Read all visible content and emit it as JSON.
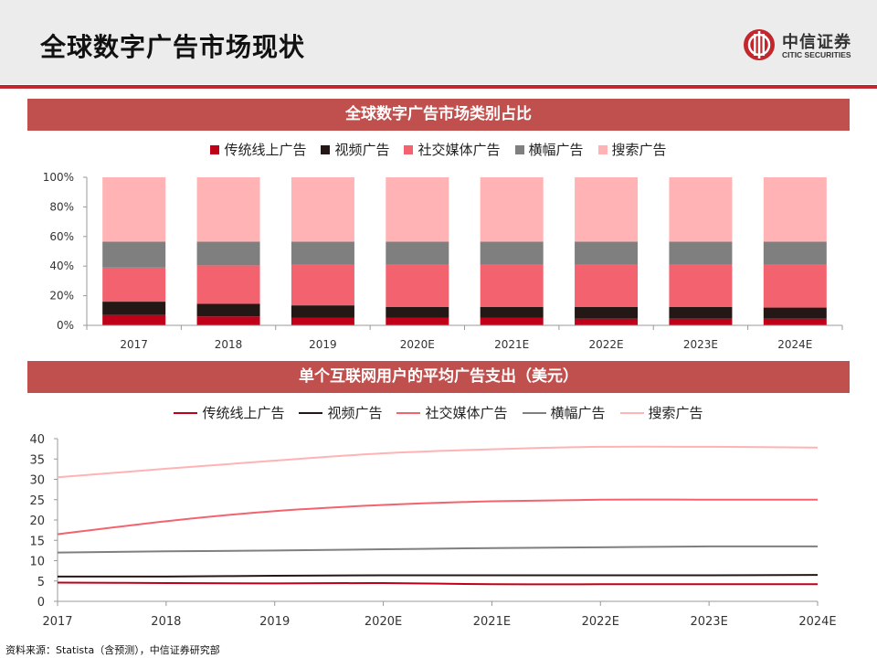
{
  "header": {
    "title": "全球数字广告市场现状",
    "logo_name": "中信证券",
    "logo_sub": "CITIC SECURITIES"
  },
  "colors": {
    "traditional": "#c00018",
    "video": "#231815",
    "social": "#f2636f",
    "banner": "#7f7f7f",
    "search": "#ffb3b5",
    "band": "#c0504d",
    "brand_red": "#c1272d"
  },
  "footer": {
    "source": "资料来源：Statista（含预测），中信证券研究部"
  },
  "chart_data": [
    {
      "type": "bar",
      "stacked": true,
      "title": "全球数字广告市场类别占比",
      "categories": [
        "2017",
        "2018",
        "2019",
        "2020E",
        "2021E",
        "2022E",
        "2023E",
        "2024E"
      ],
      "yticks": [
        "0%",
        "20%",
        "40%",
        "60%",
        "80%",
        "100%"
      ],
      "ylim": [
        0,
        100
      ],
      "series": [
        {
          "name": "传统线上广告",
          "values": [
            7,
            6,
            5,
            5,
            5,
            4.5,
            4.5,
            4.5
          ]
        },
        {
          "name": "视频广告",
          "values": [
            9,
            8.5,
            8.5,
            7.5,
            7.5,
            8,
            8,
            7.5
          ]
        },
        {
          "name": "社交媒体广告",
          "values": [
            23,
            26,
            27.5,
            28.5,
            28.5,
            28.5,
            28.5,
            29
          ]
        },
        {
          "name": "横幅广告",
          "values": [
            17.5,
            16,
            15.5,
            15.5,
            15.5,
            15.5,
            15.5,
            15.5
          ]
        },
        {
          "name": "搜索广告",
          "values": [
            43.5,
            43.5,
            43.5,
            43.5,
            43.5,
            43.5,
            43.5,
            43.5
          ]
        }
      ],
      "legend_position": "top"
    },
    {
      "type": "line",
      "title": "单个互联网用户的平均广告支出（美元）",
      "x": [
        "2017",
        "2018",
        "2019",
        "2020E",
        "2021E",
        "2022E",
        "2023E",
        "2024E"
      ],
      "yticks": [
        "0",
        "5",
        "10",
        "15",
        "20",
        "25",
        "30",
        "35",
        "40"
      ],
      "ylim": [
        0,
        40
      ],
      "series": [
        {
          "name": "传统线上广告",
          "values": [
            4.6,
            4.5,
            4.4,
            4.5,
            4.2,
            4.2,
            4.2,
            4.2
          ]
        },
        {
          "name": "视频广告",
          "values": [
            6.1,
            6.1,
            6.3,
            6.4,
            6.4,
            6.4,
            6.4,
            6.5
          ]
        },
        {
          "name": "社交媒体广告",
          "values": [
            16.5,
            19.7,
            22.2,
            23.7,
            24.6,
            25.0,
            25.0,
            25.0
          ]
        },
        {
          "name": "横幅广告",
          "values": [
            12.0,
            12.3,
            12.5,
            12.8,
            13.1,
            13.3,
            13.5,
            13.5
          ]
        },
        {
          "name": "搜索广告",
          "values": [
            30.5,
            32.6,
            34.6,
            36.4,
            37.4,
            38.0,
            38.0,
            37.8
          ]
        }
      ],
      "legend_position": "top"
    }
  ]
}
